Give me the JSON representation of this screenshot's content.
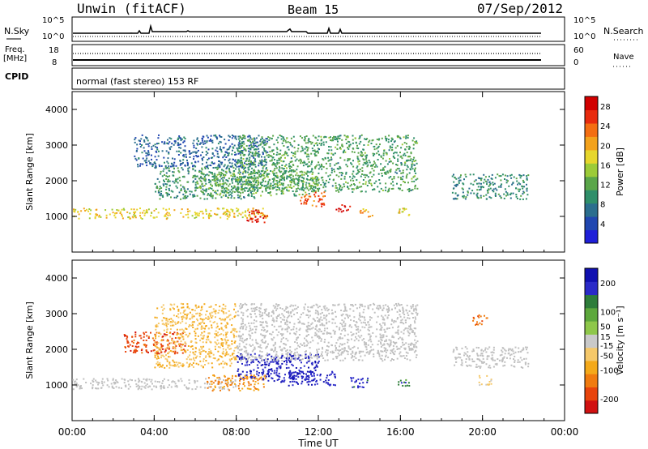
{
  "header": {
    "station": "Unwin (fitACF)",
    "beam": "Beam 15",
    "date": "07/Sep/2012"
  },
  "top_panel": {
    "nsky_label": "N.Sky",
    "nsearch_label": "N.Search",
    "nsky_ticks": [
      "10^5",
      "10^0"
    ],
    "freq_label_1": "Freq.",
    "freq_label_2": "[MHz]",
    "freq_ticks": [
      "18",
      "8"
    ],
    "nave_label": "Nave",
    "nave_ticks": [
      "60",
      "0"
    ],
    "cpid_label": "CPID",
    "cpid_text": "normal (fast stereo) 153 RF"
  },
  "colors": {
    "power_scale": [
      "#1f1fd8",
      "#2147b0",
      "#2b6e8e",
      "#2f8f6a",
      "#5aa64a",
      "#9ccb38",
      "#e6d62c",
      "#f3a21c",
      "#f46e12",
      "#e82b0e",
      "#d10000"
    ],
    "velocity_scale": [
      "#d11111",
      "#e8440c",
      "#f07b0f",
      "#f4a91a",
      "#f5c86a",
      "#c9c9c9",
      "#8ec74a",
      "#5da83c",
      "#2e7d3a",
      "#2a2ac8",
      "#1010b0"
    ],
    "ground_scatter": "#c0c0c0"
  },
  "chart_data": [
    {
      "type": "heatmap",
      "panel": "power",
      "ylabel": "Slant Range [km]",
      "xlabel": "",
      "ylim": [
        0,
        4500
      ],
      "xlim": [
        0,
        24
      ],
      "y_ticks": [
        "1000",
        "2000",
        "3000",
        "4000"
      ],
      "colorbar_label": "Power [dB]",
      "colorbar_ticks": [
        "4",
        "8",
        "12",
        "16",
        "20",
        "24",
        "28"
      ],
      "colorbar_range": [
        0,
        30
      ],
      "echo_regions": [
        {
          "t0": 0.0,
          "t1": 9.5,
          "r0": 950,
          "r1": 1250,
          "level": 18
        },
        {
          "t0": 4.0,
          "t1": 9.0,
          "r0": 1500,
          "r1": 2400,
          "level": 10
        },
        {
          "t0": 3.0,
          "t1": 9.5,
          "r0": 2400,
          "r1": 3300,
          "level": 6
        },
        {
          "t0": 6.0,
          "t1": 12.0,
          "r0": 1600,
          "r1": 2300,
          "level": 12
        },
        {
          "t0": 8.0,
          "t1": 16.8,
          "r0": 1700,
          "r1": 3300,
          "level": 11
        },
        {
          "t0": 8.5,
          "t1": 9.5,
          "r0": 850,
          "r1": 1200,
          "level": 26
        },
        {
          "t0": 11.0,
          "t1": 12.3,
          "r0": 1300,
          "r1": 1700,
          "level": 24
        },
        {
          "t0": 12.8,
          "t1": 13.6,
          "r0": 1150,
          "r1": 1350,
          "level": 28
        },
        {
          "t0": 14.0,
          "t1": 14.6,
          "r0": 1000,
          "r1": 1250,
          "level": 20
        },
        {
          "t0": 15.8,
          "t1": 16.4,
          "r0": 1000,
          "r1": 1250,
          "level": 18
        },
        {
          "t0": 18.5,
          "t1": 22.2,
          "r0": 1500,
          "r1": 2200,
          "level": 9
        }
      ]
    },
    {
      "type": "heatmap",
      "panel": "velocity",
      "ylabel": "Slant Range [km]",
      "xlabel": "Time UT",
      "ylim": [
        0,
        4500
      ],
      "xlim": [
        0,
        24
      ],
      "x_ticks": [
        "00:00",
        "04:00",
        "08:00",
        "12:00",
        "16:00",
        "20:00",
        "00:00"
      ],
      "y_ticks": [
        "1000",
        "2000",
        "3000",
        "4000"
      ],
      "colorbar_label": "Velocity [m s⁻¹]",
      "colorbar_ticks": [
        "200",
        "100",
        "50",
        "15",
        "-15",
        "-50",
        "-100",
        "-200"
      ],
      "colorbar_range": [
        -250,
        250
      ],
      "echo_regions": [
        {
          "t0": 0.0,
          "t1": 8.0,
          "r0": 900,
          "r1": 1200,
          "level": 0,
          "gs": true
        },
        {
          "t0": 2.5,
          "t1": 5.5,
          "r0": 1900,
          "r1": 2500,
          "level": -180
        },
        {
          "t0": 4.0,
          "t1": 8.0,
          "r0": 1500,
          "r1": 3300,
          "level": -60
        },
        {
          "t0": 6.5,
          "t1": 9.5,
          "r0": 850,
          "r1": 1300,
          "level": -120
        },
        {
          "t0": 8.0,
          "t1": 12.0,
          "r0": 1100,
          "r1": 1900,
          "level": 200
        },
        {
          "t0": 10.5,
          "t1": 12.8,
          "r0": 1000,
          "r1": 1400,
          "level": 190
        },
        {
          "t0": 8.0,
          "t1": 16.8,
          "r0": 1700,
          "r1": 3300,
          "level": 0,
          "gs": true
        },
        {
          "t0": 13.5,
          "t1": 14.4,
          "r0": 900,
          "r1": 1250,
          "level": 180
        },
        {
          "t0": 15.8,
          "t1": 16.4,
          "r0": 950,
          "r1": 1200,
          "level": 140
        },
        {
          "t0": 18.5,
          "t1": 22.2,
          "r0": 1500,
          "r1": 2100,
          "level": 0,
          "gs": true
        },
        {
          "t0": 19.5,
          "t1": 20.2,
          "r0": 2700,
          "r1": 3000,
          "level": -150
        },
        {
          "t0": 19.8,
          "t1": 20.4,
          "r0": 1000,
          "r1": 1300,
          "level": -30
        }
      ]
    }
  ]
}
